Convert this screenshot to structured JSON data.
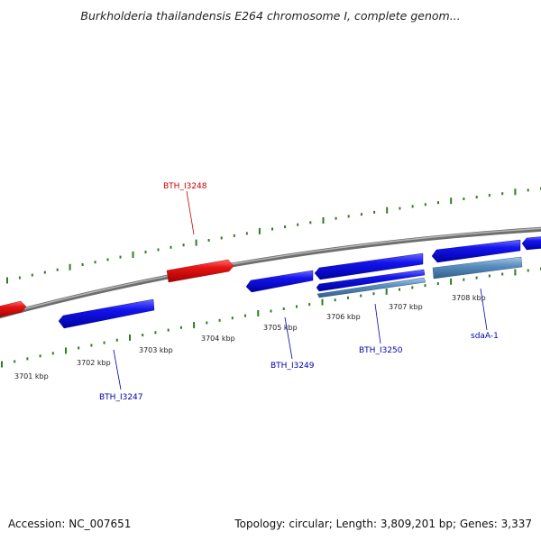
{
  "title": "Burkholderia thailandensis E264 chromosome I, complete genom...",
  "footer": {
    "accession": "Accession: NC_007651",
    "summary": "Topology: circular; Length: 3,809,201 bp; Genes: 3,337"
  },
  "colors": {
    "backbone": "#8a8a8a",
    "tick": "#2e7d1e",
    "forward_gene": "#e01010",
    "reverse_gene": "#1010e6",
    "pseudo_gene": "#5a8fc0",
    "forward_label": "#cc0000",
    "reverse_label": "#0000aa"
  },
  "scale": {
    "tick_labels": [
      "3701 kbp",
      "3702 kbp",
      "3703 kbp",
      "3704 kbp",
      "3705 kbp",
      "3706 kbp",
      "3707 kbp",
      "3708 kbp"
    ]
  },
  "genes": [
    {
      "strand": "forward",
      "name": ""
    },
    {
      "strand": "forward",
      "name": "BTH_I3248"
    },
    {
      "strand": "reverse",
      "name": "BTH_I3247"
    },
    {
      "strand": "reverse",
      "name": "BTH_I3249"
    },
    {
      "strand": "reverse",
      "name": ""
    },
    {
      "strand": "reverse",
      "name": "BTH_I3250"
    },
    {
      "strand": "reverse",
      "name": ""
    },
    {
      "strand": "reverse",
      "name": ""
    },
    {
      "strand": "reverse",
      "name": "sdaA-1"
    },
    {
      "strand": "reverse",
      "name": ""
    }
  ]
}
